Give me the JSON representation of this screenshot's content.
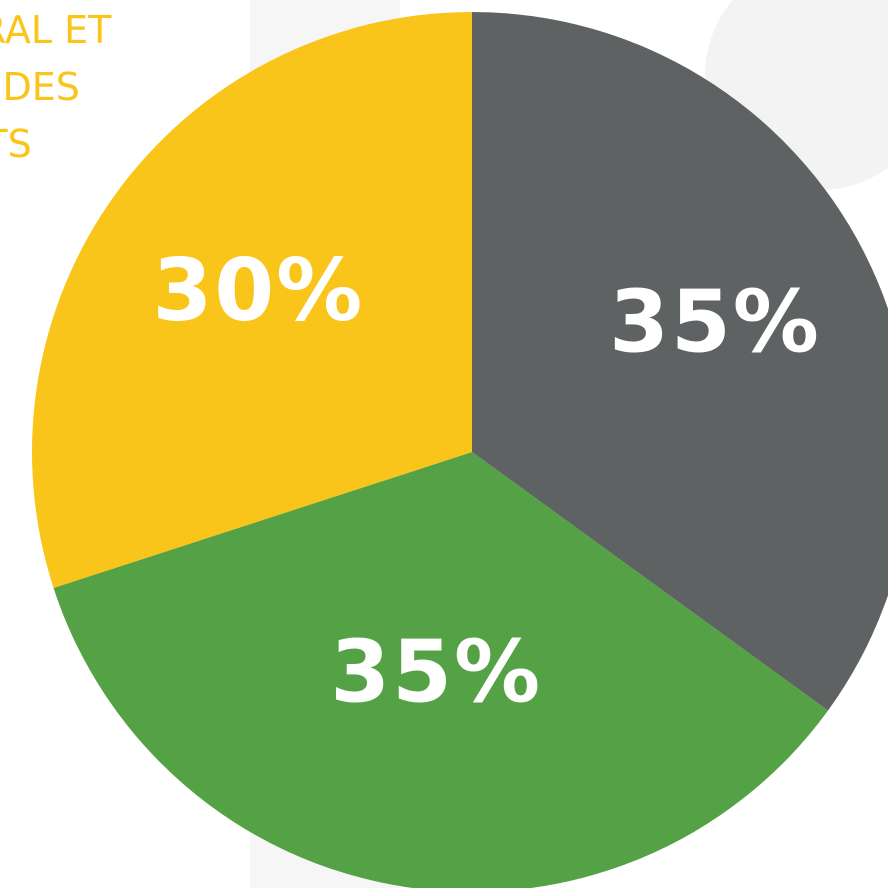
{
  "caption": {
    "lines": [
      "ÉRAL ET",
      "IT DES",
      "NTS"
    ]
  },
  "colors": {
    "background": "#ffffff",
    "caption": "#f9c51a",
    "label": "#ffffff"
  },
  "chart_data": {
    "type": "pie",
    "title": "",
    "start_angle_deg": 0,
    "direction": "clockwise",
    "slices": [
      {
        "value": 35,
        "label": "35%",
        "color": "#5f6263"
      },
      {
        "value": 35,
        "label": "35%",
        "color": "#55a246"
      },
      {
        "value": 30,
        "label": "30%",
        "color": "#f9c51a"
      }
    ]
  }
}
